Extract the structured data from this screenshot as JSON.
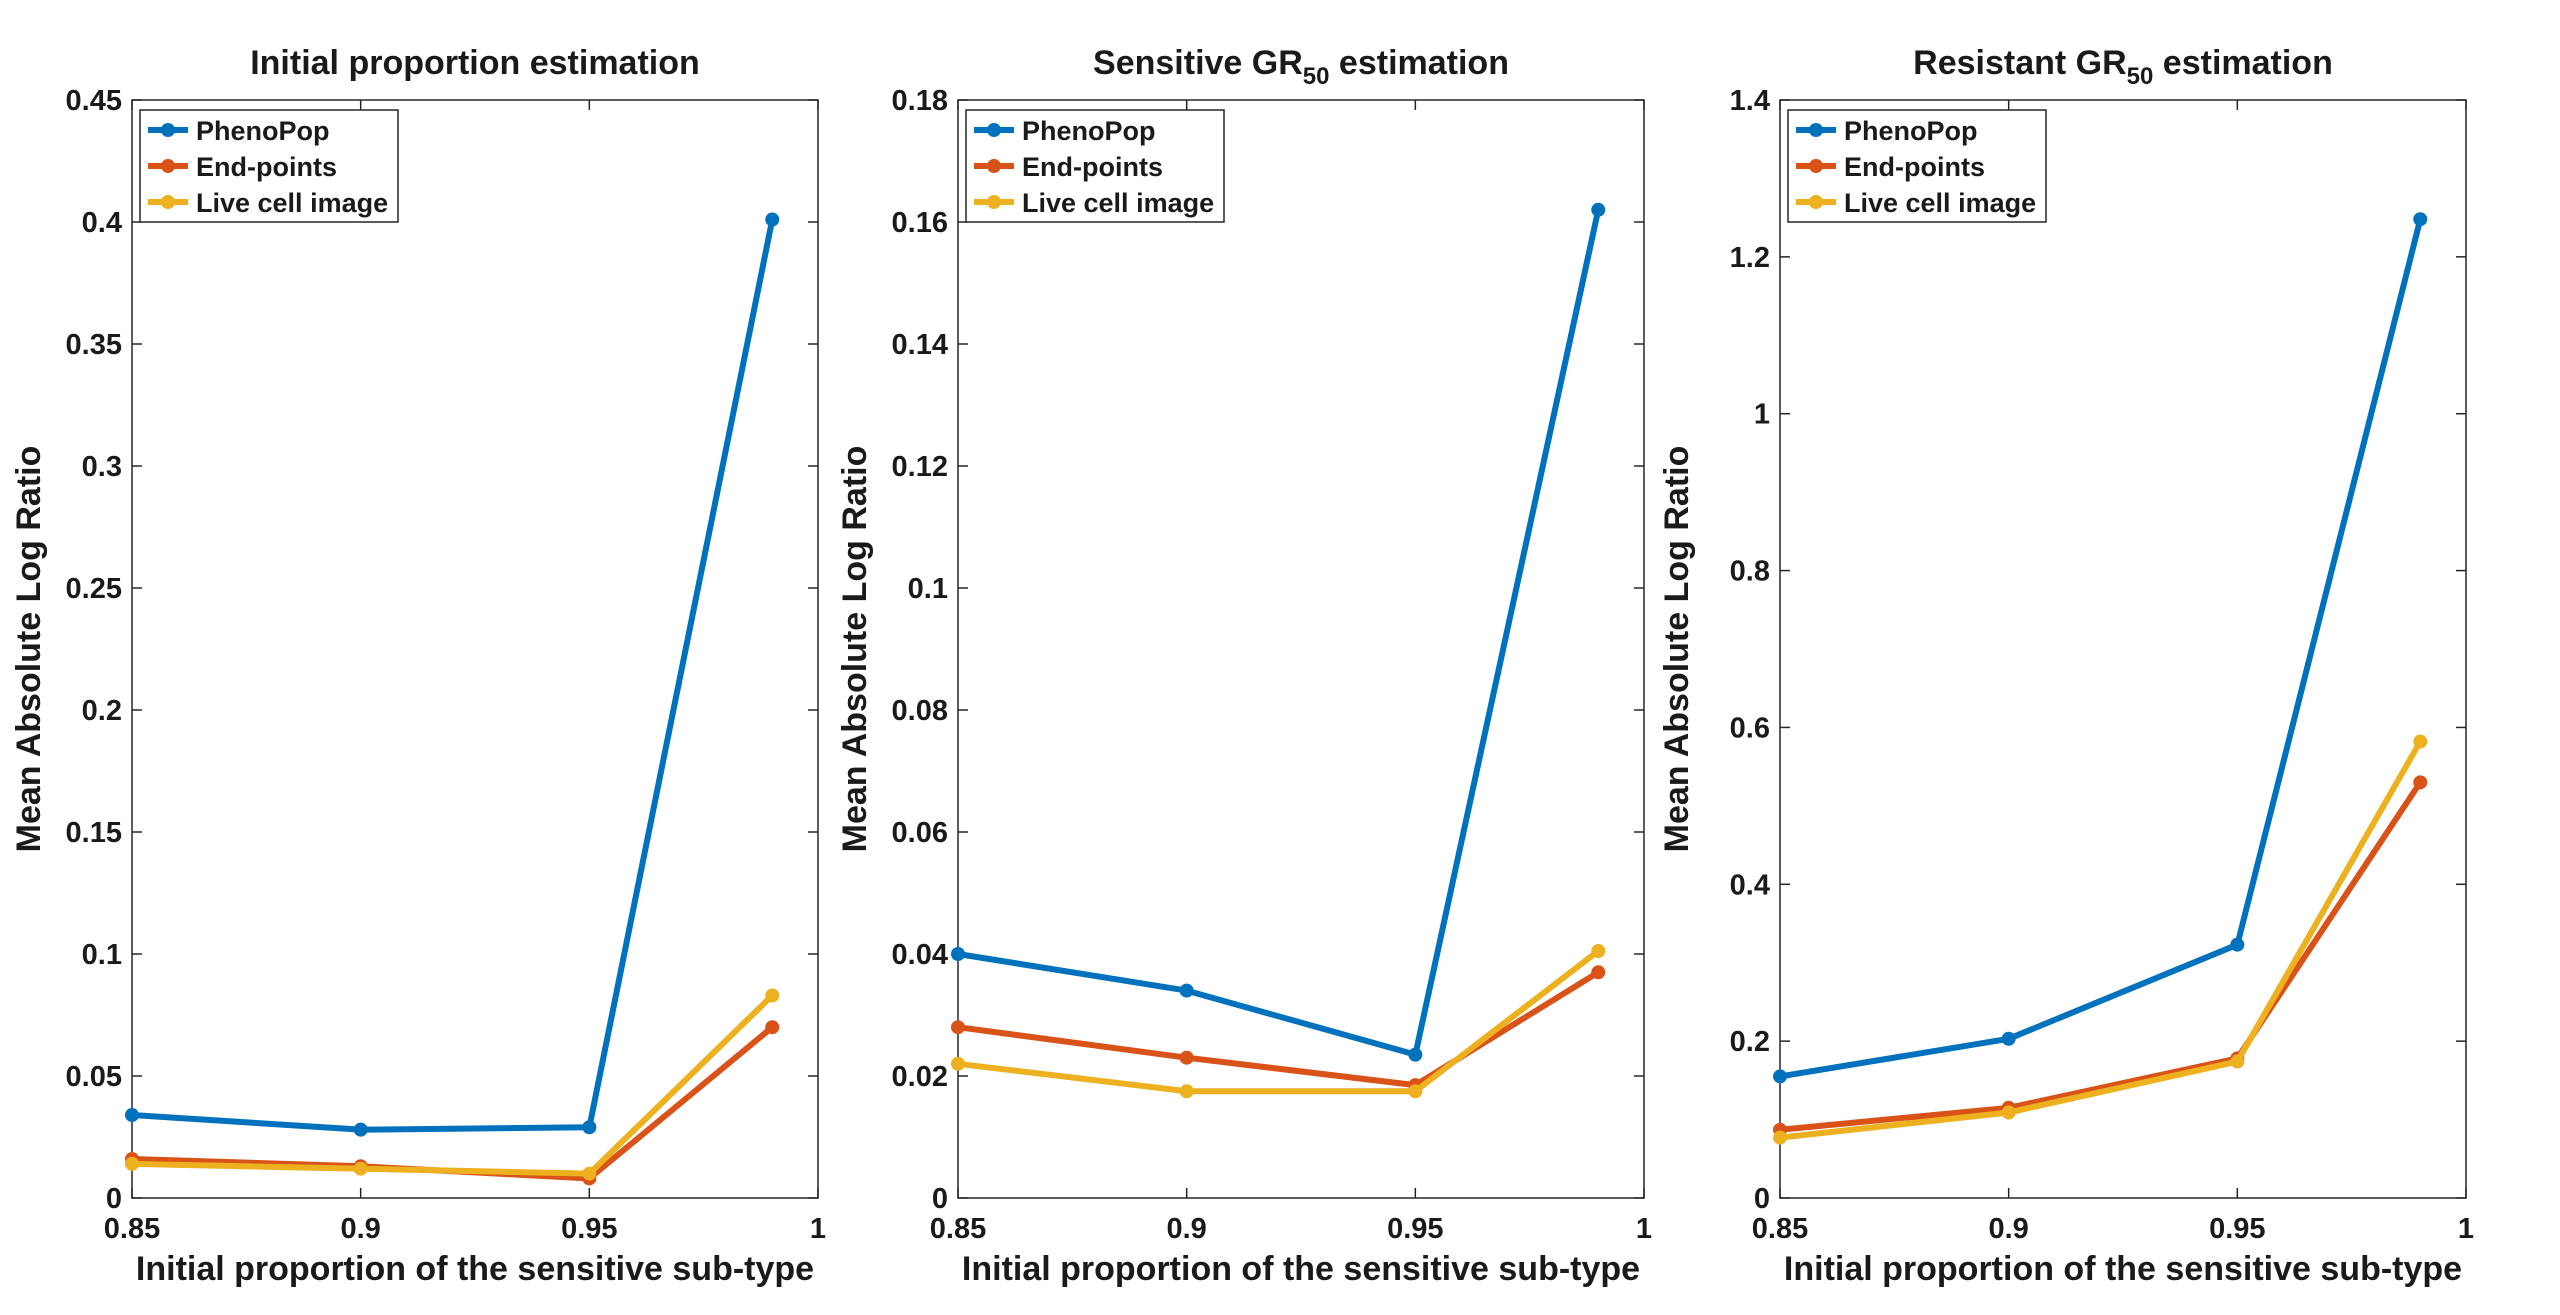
{
  "chart_data": [
    {
      "type": "line",
      "title": "Initial proportion estimation",
      "title_subscript": "",
      "title_suffix": "",
      "xlabel": "Initial proportion of the sensitive sub-type",
      "ylabel": "Mean Absolute Log Ratio",
      "xlim": [
        0.85,
        1
      ],
      "ylim": [
        0,
        0.45
      ],
      "xticks": [
        0.85,
        0.9,
        0.95,
        1
      ],
      "xtick_labels": [
        "0.85",
        "0.9",
        "0.95",
        "1"
      ],
      "yticks": [
        0,
        0.05,
        0.1,
        0.15,
        0.2,
        0.25,
        0.3,
        0.35,
        0.4,
        0.45
      ],
      "ytick_labels": [
        "0",
        "0.05",
        "0.1",
        "0.15",
        "0.2",
        "0.25",
        "0.3",
        "0.35",
        "0.4",
        "0.45"
      ],
      "x": [
        0.85,
        0.9,
        0.95,
        0.99
      ],
      "legend_position": "top-left",
      "grid": false,
      "series": [
        {
          "name": "PhenoPop",
          "color": "#0072BD",
          "values": [
            0.034,
            0.028,
            0.029,
            0.401
          ]
        },
        {
          "name": "End-points",
          "color": "#D95319",
          "values": [
            0.016,
            0.013,
            0.008,
            0.07
          ]
        },
        {
          "name": "Live cell image",
          "color": "#EDB120",
          "values": [
            0.014,
            0.012,
            0.01,
            0.083
          ]
        }
      ]
    },
    {
      "type": "line",
      "title": "Sensitive GR",
      "title_subscript": "50",
      "title_suffix": " estimation",
      "xlabel": "Initial proportion of the sensitive sub-type",
      "ylabel": "Mean Absolute Log Ratio",
      "xlim": [
        0.85,
        1
      ],
      "ylim": [
        0,
        0.18
      ],
      "xticks": [
        0.85,
        0.9,
        0.95,
        1
      ],
      "xtick_labels": [
        "0.85",
        "0.9",
        "0.95",
        "1"
      ],
      "yticks": [
        0,
        0.02,
        0.04,
        0.06,
        0.08,
        0.1,
        0.12,
        0.14,
        0.16,
        0.18
      ],
      "ytick_labels": [
        "0",
        "0.02",
        "0.04",
        "0.06",
        "0.08",
        "0.1",
        "0.12",
        "0.14",
        "0.16",
        "0.18"
      ],
      "x": [
        0.85,
        0.9,
        0.95,
        0.99
      ],
      "legend_position": "top-left",
      "grid": false,
      "series": [
        {
          "name": "PhenoPop",
          "color": "#0072BD",
          "values": [
            0.04,
            0.034,
            0.0235,
            0.162
          ]
        },
        {
          "name": "End-points",
          "color": "#D95319",
          "values": [
            0.028,
            0.023,
            0.0185,
            0.037
          ]
        },
        {
          "name": "Live cell image",
          "color": "#EDB120",
          "values": [
            0.022,
            0.0175,
            0.0175,
            0.0405
          ]
        }
      ]
    },
    {
      "type": "line",
      "title": "Resistant GR",
      "title_subscript": "50",
      "title_suffix": " estimation",
      "xlabel": "Initial proportion of the sensitive sub-type",
      "ylabel": "Mean Absolute Log Ratio",
      "xlim": [
        0.85,
        1
      ],
      "ylim": [
        0,
        1.4
      ],
      "xticks": [
        0.85,
        0.9,
        0.95,
        1
      ],
      "xtick_labels": [
        "0.85",
        "0.9",
        "0.95",
        "1"
      ],
      "yticks": [
        0,
        0.2,
        0.4,
        0.6,
        0.8,
        1,
        1.2,
        1.4
      ],
      "ytick_labels": [
        "0",
        "0.2",
        "0.4",
        "0.6",
        "0.8",
        "1",
        "1.2",
        "1.4"
      ],
      "x": [
        0.85,
        0.9,
        0.95,
        0.99
      ],
      "legend_position": "top-left",
      "grid": false,
      "series": [
        {
          "name": "PhenoPop",
          "color": "#0072BD",
          "values": [
            0.155,
            0.203,
            0.323,
            1.248
          ]
        },
        {
          "name": "End-points",
          "color": "#D95319",
          "values": [
            0.087,
            0.115,
            0.178,
            0.53
          ]
        },
        {
          "name": "Live cell image",
          "color": "#EDB120",
          "values": [
            0.077,
            0.109,
            0.174,
            0.582
          ]
        }
      ]
    }
  ]
}
